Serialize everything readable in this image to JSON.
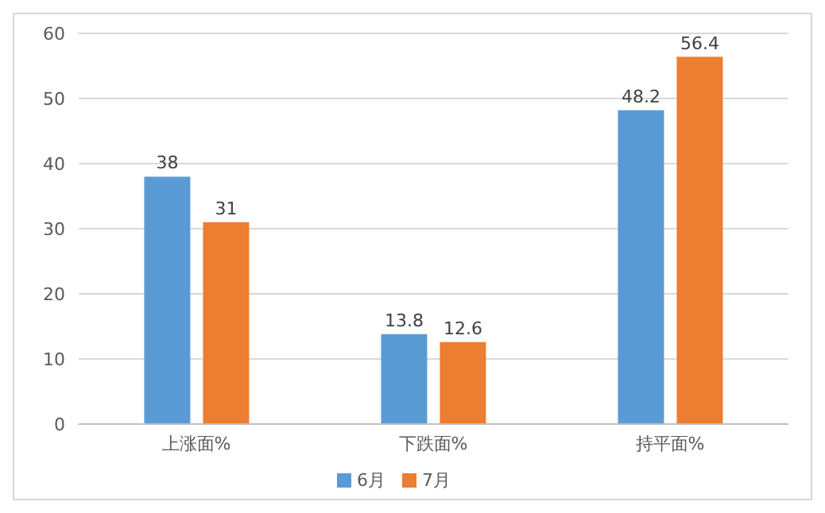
{
  "chart_data": {
    "type": "bar",
    "categories": [
      "上涨面%",
      "下跌面%",
      "持平面%"
    ],
    "series": [
      {
        "name": "6月",
        "color": "#5b9bd5",
        "values": [
          38,
          13.8,
          48.2
        ]
      },
      {
        "name": "7月",
        "color": "#ed7d31",
        "values": [
          31,
          12.6,
          56.4
        ]
      }
    ],
    "ylim": [
      0,
      60
    ],
    "yticks": [
      0,
      10,
      20,
      30,
      40,
      50,
      60
    ],
    "grid": "y",
    "legend": "bottom",
    "data_labels": true
  }
}
